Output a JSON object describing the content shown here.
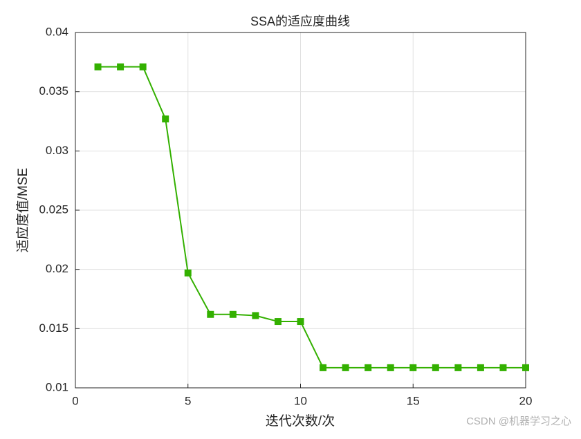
{
  "chart_data": {
    "type": "line",
    "title": "SSA的适应度曲线",
    "x_label": "迭代次数/次",
    "y_label": "适应度值/MSE",
    "x": [
      1,
      2,
      3,
      4,
      5,
      6,
      7,
      8,
      9,
      10,
      11,
      12,
      13,
      14,
      15,
      16,
      17,
      18,
      19,
      20
    ],
    "series": [
      {
        "color": "#33b000",
        "values": [
          0.0371,
          0.0371,
          0.0371,
          0.0327,
          0.0197,
          0.0162,
          0.0162,
          0.0161,
          0.0156,
          0.0156,
          0.0117,
          0.0117,
          0.0117,
          0.0117,
          0.0117,
          0.0117,
          0.0117,
          0.0117,
          0.0117,
          0.0117
        ]
      }
    ],
    "xlim": [
      0,
      20
    ],
    "xticks": [
      0,
      5,
      10,
      15,
      20
    ],
    "ylim": [
      0.01,
      0.04
    ],
    "yticks": [
      0.01,
      0.015,
      0.02,
      0.025,
      0.03,
      0.035,
      0.04
    ],
    "grid": true,
    "watermark": "CSDN @机器学习之心"
  }
}
